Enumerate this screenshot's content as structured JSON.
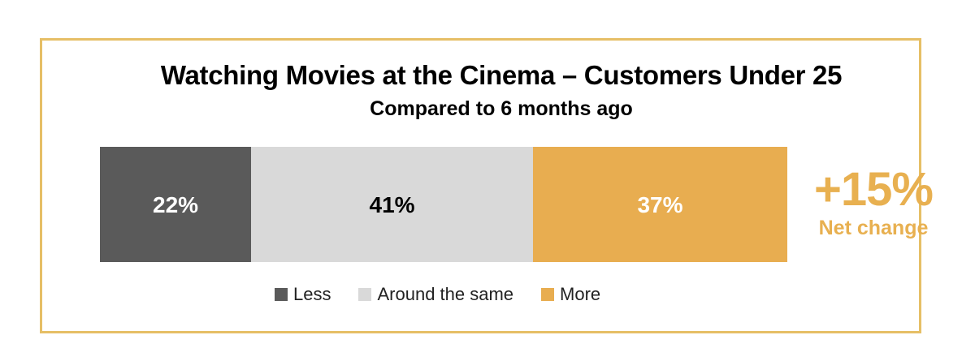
{
  "chart_data": {
    "type": "bar",
    "orientation": "horizontal-stacked-100",
    "title": "Watching Movies at the Cinema – Customers Under 25",
    "subtitle": "Compared to 6 months ago",
    "series": [
      {
        "name": "Less",
        "value": 22,
        "label": "22%",
        "color": "#5a5a5a",
        "label_color": "#ffffff"
      },
      {
        "name": "Around the same",
        "value": 41,
        "label": "41%",
        "color": "#d9d9d9",
        "label_color": "#000000"
      },
      {
        "name": "More",
        "value": 37,
        "label": "37%",
        "color": "#e8ad50",
        "label_color": "#ffffff"
      }
    ],
    "net_change": {
      "value": "+15%",
      "label": "Net change"
    },
    "legend_position": "bottom",
    "frame_color": "#e6bf66"
  }
}
